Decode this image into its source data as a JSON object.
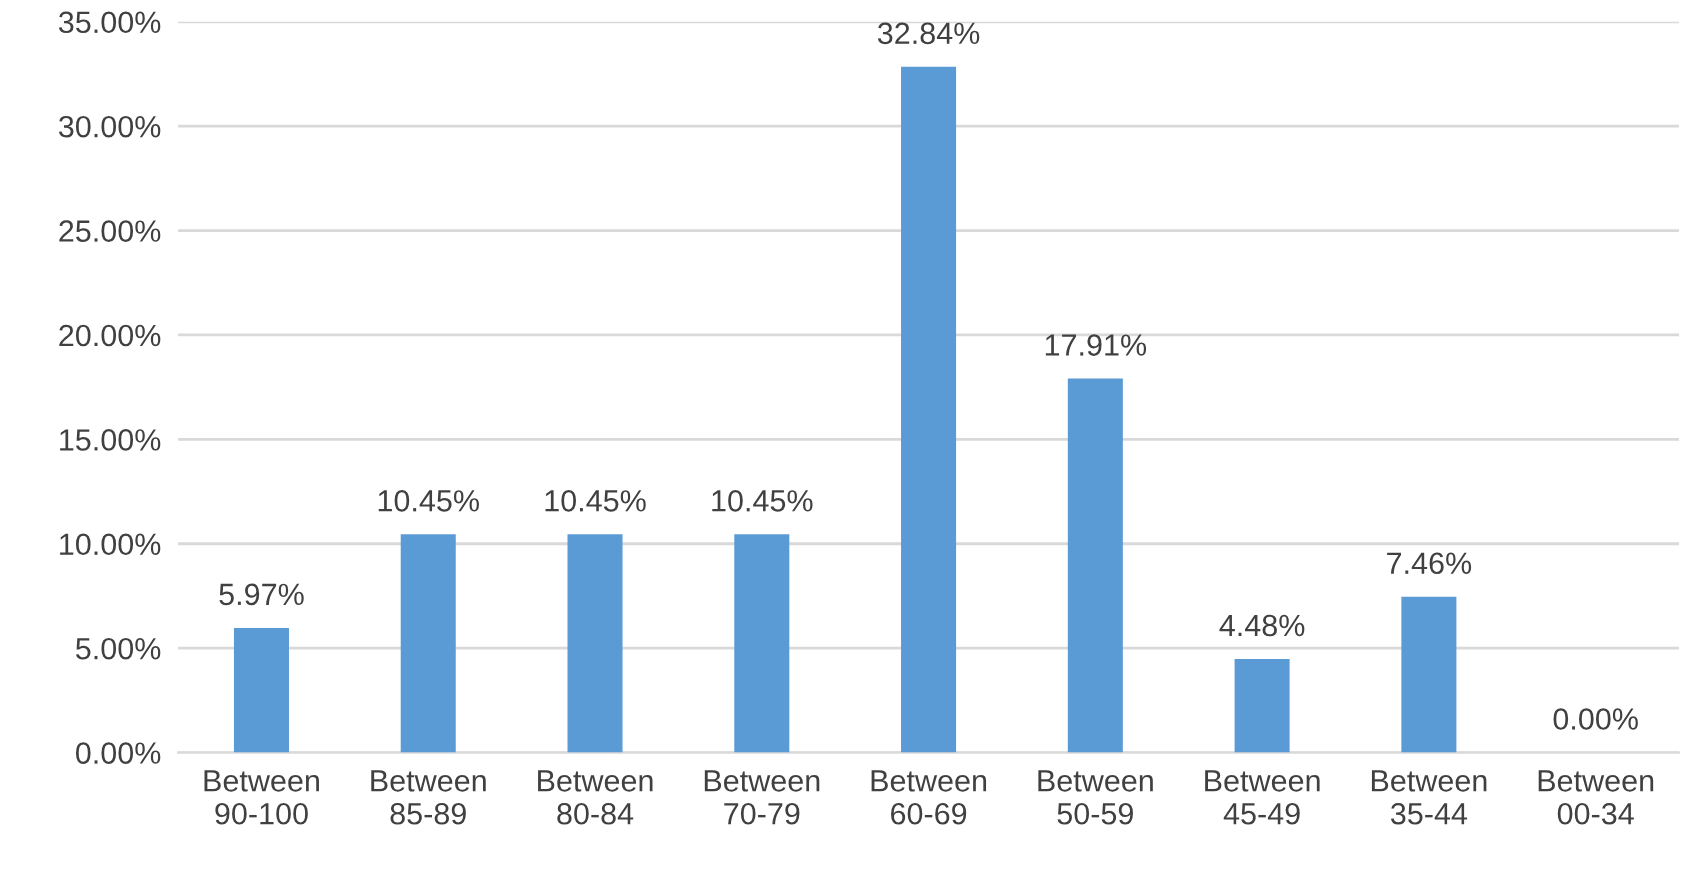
{
  "chart_data": {
    "type": "bar",
    "categories": [
      "Between\n90-100",
      "Between\n85-89",
      "Between\n80-84",
      "Between\n70-79",
      "Between\n60-69",
      "Between\n50-59",
      "Between\n45-49",
      "Between\n35-44",
      "Between\n00-34"
    ],
    "values": [
      5.97,
      10.45,
      10.45,
      10.45,
      32.84,
      17.91,
      4.48,
      7.46,
      0.0
    ],
    "value_labels": [
      "5.97%",
      "10.45%",
      "10.45%",
      "10.45%",
      "32.84%",
      "17.91%",
      "4.48%",
      "7.46%",
      "0.00%"
    ],
    "color": "#5b9bd5",
    "ylim": [
      0,
      35
    ],
    "yticks": [
      {
        "value": 0,
        "label": "0.00%"
      },
      {
        "value": 5,
        "label": "5.00%"
      },
      {
        "value": 10,
        "label": "10.00%"
      },
      {
        "value": 15,
        "label": "15.00%"
      },
      {
        "value": 20,
        "label": "20.00%"
      },
      {
        "value": 25,
        "label": "25.00%"
      },
      {
        "value": 30,
        "label": "30.00%"
      },
      {
        "value": 35,
        "label": "35.00%"
      }
    ],
    "grid": "y"
  }
}
